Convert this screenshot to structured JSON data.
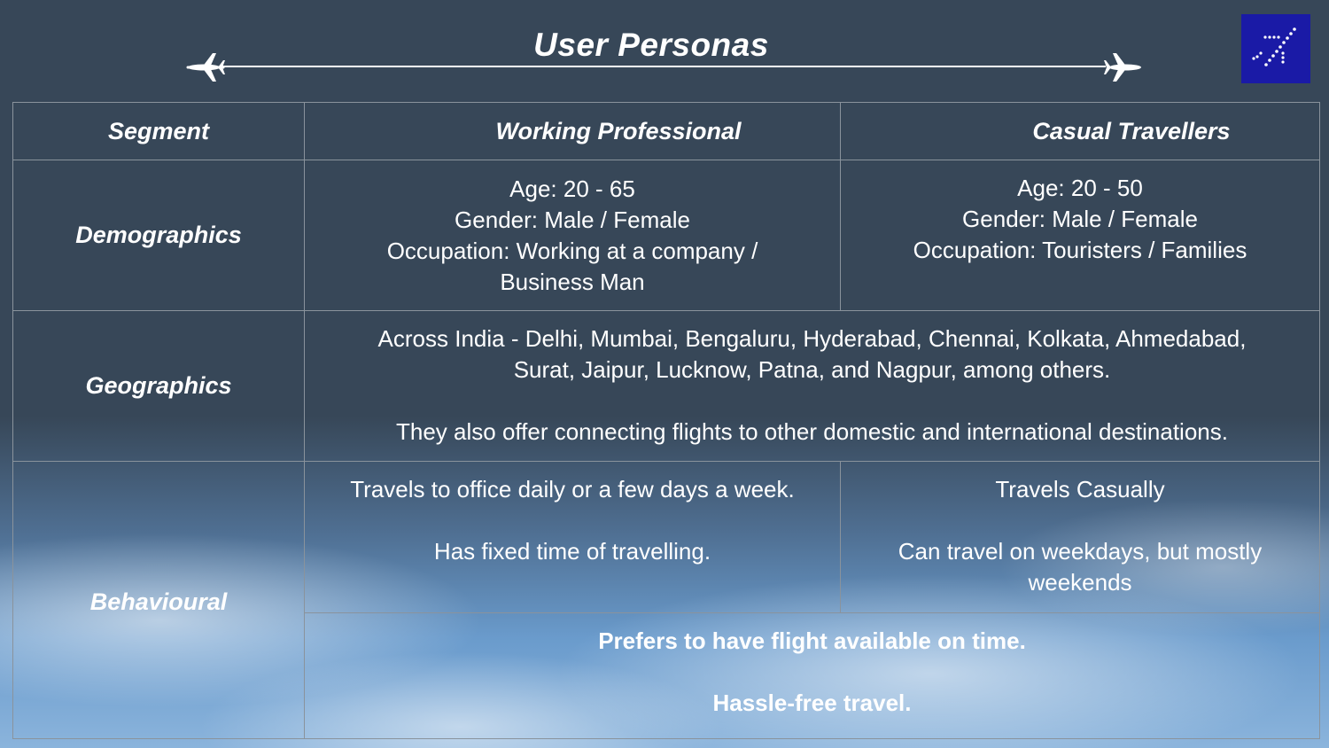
{
  "header": {
    "title": "User Personas"
  },
  "icons": {
    "left": "airplane-takeoff-icon",
    "right": "airplane-icon",
    "logo": "dotted-airplane-logo"
  },
  "colors": {
    "background": "#374758",
    "logo_background": "#1a1aa6",
    "border": "#8a939c",
    "text": "#ffffff"
  },
  "table": {
    "headers": [
      "Segment",
      "Working Professional",
      "Casual Travellers"
    ],
    "demographics": {
      "label": "Demographics",
      "working": {
        "age": "Age: 20 - 65",
        "gender": "Gender: Male / Female",
        "occupation_1": "Occupation: Working at a company /",
        "occupation_2": "Business Man"
      },
      "casual": {
        "age": "Age: 20 - 50",
        "gender": "Gender: Male / Female",
        "occupation": "Occupation:  Touristers / Families"
      }
    },
    "geographics": {
      "label": "Geographics",
      "line_1": "Across India - Delhi, Mumbai, Bengaluru, Hyderabad, Chennai, Kolkata, Ahmedabad,",
      "line_2": "Surat, Jaipur, Lucknow, Patna, and Nagpur, among others.",
      "line_3": "They also offer connecting flights to other domestic and international destinations."
    },
    "behavioural": {
      "label": "Behavioural",
      "working": {
        "line_1": "Travels to office daily or a few days a week.",
        "line_2": "Has fixed time of travelling."
      },
      "casual": {
        "line_1": "Travels Casually",
        "line_2": "Can travel on weekdays, but mostly",
        "line_3": "weekends"
      },
      "shared": {
        "line_1": "Prefers to have flight available on time.",
        "line_2": "Hassle-free travel."
      }
    }
  }
}
